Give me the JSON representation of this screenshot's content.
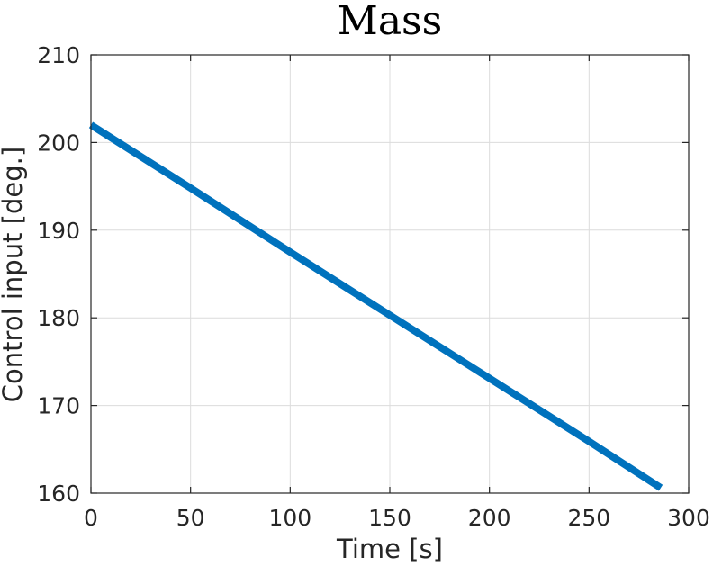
{
  "chart_data": {
    "type": "line",
    "title": "Mass",
    "xlabel": "Time [s]",
    "ylabel": "Control input [deg.]",
    "xlim": [
      0,
      300
    ],
    "ylim": [
      160,
      210
    ],
    "xticks": [
      0,
      50,
      100,
      150,
      200,
      250,
      300
    ],
    "yticks": [
      160,
      170,
      180,
      190,
      200,
      210
    ],
    "xtick_labels": [
      "0",
      "50",
      "100",
      "150",
      "200",
      "250",
      "300"
    ],
    "ytick_labels": [
      "160",
      "170",
      "180",
      "190",
      "200",
      "210"
    ],
    "grid": true,
    "series": [
      {
        "color": "#0072BD",
        "x": [
          0,
          50,
          100,
          150,
          200,
          250,
          286
        ],
        "y": [
          202,
          194.8,
          187.5,
          180.3,
          173.1,
          165.9,
          160.6
        ]
      }
    ]
  }
}
